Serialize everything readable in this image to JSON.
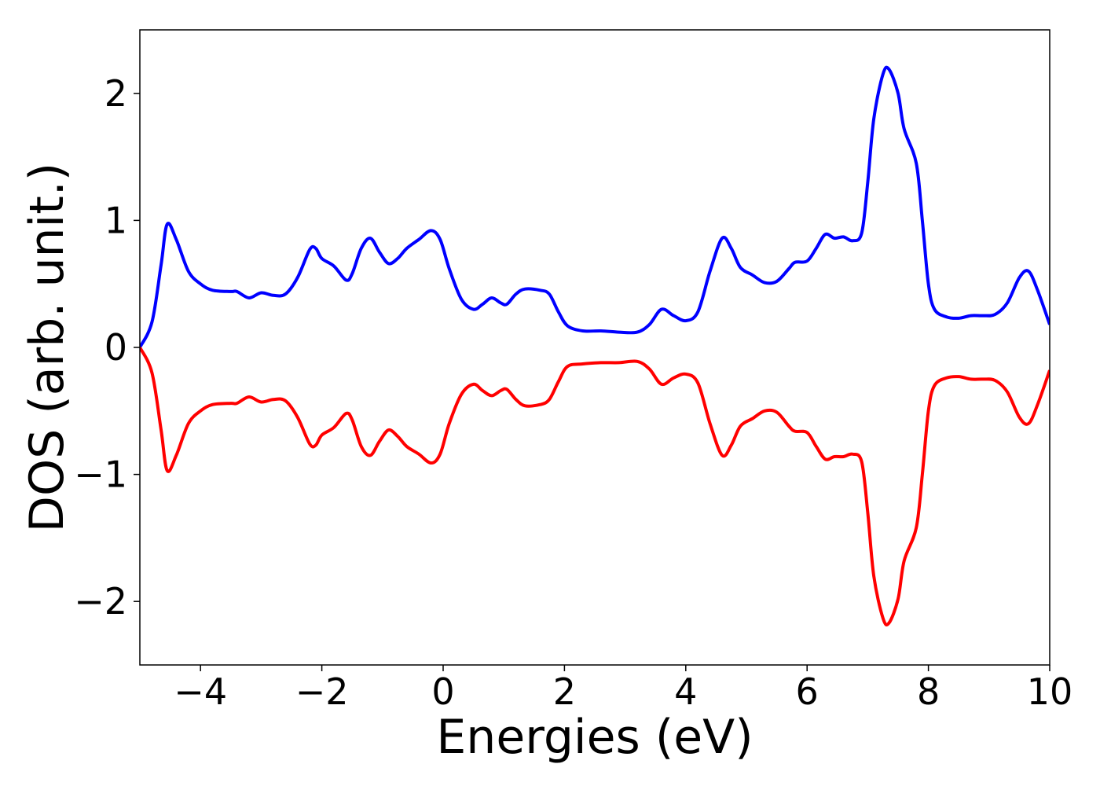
{
  "chart_data": {
    "type": "line",
    "xlabel": "Energies (eV)",
    "ylabel": "DOS (arb. unit.)",
    "xlim": [
      -5,
      10
    ],
    "ylim": [
      -2.5,
      2.5
    ],
    "xticks": [
      {
        "value": -4,
        "label": "−4"
      },
      {
        "value": -2,
        "label": "−2"
      },
      0,
      2,
      4,
      6,
      8,
      10
    ],
    "yticks": [
      {
        "value": -2,
        "label": "−2"
      },
      {
        "value": -1,
        "label": "−1"
      },
      0,
      1,
      2
    ],
    "grid": false,
    "x": [
      -5,
      -4.8,
      -4.65,
      -4.55,
      -4.4,
      -4.2,
      -4,
      -3.8,
      -3.5,
      -3.4,
      -3.2,
      -3,
      -2.8,
      -2.6,
      -2.4,
      -2.2,
      -2.1,
      -2,
      -1.8,
      -1.6,
      -1.5,
      -1.35,
      -1.2,
      -1.05,
      -0.9,
      -0.75,
      -0.6,
      -0.4,
      -0.2,
      -0.05,
      0.1,
      0.3,
      0.5,
      0.65,
      0.8,
      0.95,
      1.05,
      1.2,
      1.35,
      1.6,
      1.75,
      1.9,
      2.05,
      2.3,
      2.6,
      2.9,
      3.2,
      3.4,
      3.6,
      3.8,
      4,
      4.2,
      4.4,
      4.6,
      4.75,
      4.9,
      5.1,
      5.3,
      5.5,
      5.7,
      5.8,
      6,
      6.15,
      6.3,
      6.45,
      6.6,
      6.75,
      6.9,
      7,
      7.1,
      7.25,
      7.35,
      7.5,
      7.6,
      7.8,
      7.9,
      8,
      8.1,
      8.3,
      8.5,
      8.7,
      8.9,
      9.1,
      9.3,
      9.5,
      9.65,
      9.8,
      10
    ],
    "series": [
      {
        "color": "#0000ff",
        "values": [
          0.0,
          0.2,
          0.65,
          0.97,
          0.85,
          0.6,
          0.5,
          0.45,
          0.44,
          0.44,
          0.39,
          0.43,
          0.41,
          0.42,
          0.55,
          0.77,
          0.78,
          0.7,
          0.64,
          0.53,
          0.58,
          0.78,
          0.86,
          0.75,
          0.66,
          0.7,
          0.78,
          0.85,
          0.92,
          0.85,
          0.62,
          0.38,
          0.3,
          0.34,
          0.39,
          0.35,
          0.34,
          0.42,
          0.46,
          0.45,
          0.42,
          0.28,
          0.17,
          0.13,
          0.13,
          0.12,
          0.12,
          0.18,
          0.3,
          0.25,
          0.21,
          0.28,
          0.6,
          0.86,
          0.78,
          0.63,
          0.57,
          0.51,
          0.52,
          0.62,
          0.67,
          0.68,
          0.78,
          0.89,
          0.86,
          0.87,
          0.84,
          0.9,
          1.3,
          1.8,
          2.15,
          2.19,
          2.0,
          1.72,
          1.45,
          1.0,
          0.5,
          0.3,
          0.24,
          0.23,
          0.25,
          0.25,
          0.26,
          0.35,
          0.55,
          0.6,
          0.45,
          0.18
        ]
      },
      {
        "color": "#ff0000",
        "values": [
          0.0,
          -0.2,
          -0.65,
          -0.97,
          -0.85,
          -0.6,
          -0.5,
          -0.45,
          -0.44,
          -0.44,
          -0.39,
          -0.43,
          -0.41,
          -0.42,
          -0.55,
          -0.76,
          -0.77,
          -0.69,
          -0.63,
          -0.52,
          -0.57,
          -0.78,
          -0.85,
          -0.74,
          -0.65,
          -0.7,
          -0.78,
          -0.84,
          -0.91,
          -0.84,
          -0.6,
          -0.37,
          -0.29,
          -0.34,
          -0.38,
          -0.34,
          -0.33,
          -0.41,
          -0.46,
          -0.45,
          -0.41,
          -0.27,
          -0.15,
          -0.13,
          -0.12,
          -0.12,
          -0.11,
          -0.17,
          -0.29,
          -0.24,
          -0.21,
          -0.28,
          -0.6,
          -0.85,
          -0.77,
          -0.62,
          -0.56,
          -0.5,
          -0.51,
          -0.62,
          -0.66,
          -0.67,
          -0.78,
          -0.88,
          -0.86,
          -0.86,
          -0.84,
          -0.9,
          -1.3,
          -1.8,
          -2.13,
          -2.17,
          -1.98,
          -1.68,
          -1.42,
          -1.0,
          -0.5,
          -0.3,
          -0.24,
          -0.23,
          -0.25,
          -0.25,
          -0.26,
          -0.35,
          -0.55,
          -0.6,
          -0.45,
          -0.18
        ]
      }
    ]
  }
}
